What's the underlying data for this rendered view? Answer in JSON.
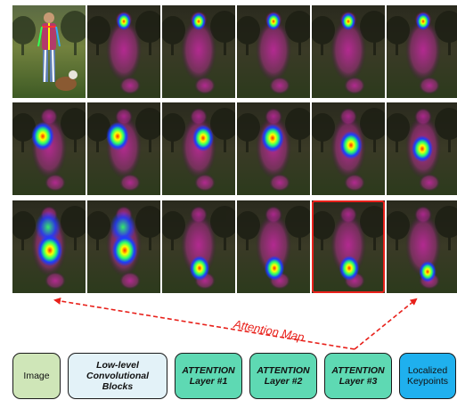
{
  "figure": {
    "arrow_label": "Attention Map",
    "rows": [
      {
        "tiles": [
          {
            "kind": "photo"
          },
          {
            "kind": "heat",
            "focus": "head"
          },
          {
            "kind": "heat",
            "focus": "head"
          },
          {
            "kind": "heat",
            "focus": "head"
          },
          {
            "kind": "heat",
            "focus": "head"
          },
          {
            "kind": "heat",
            "focus": "head"
          }
        ]
      },
      {
        "tiles": [
          {
            "kind": "heat",
            "focus": "left-shoulder"
          },
          {
            "kind": "heat",
            "focus": "left-shoulder"
          },
          {
            "kind": "heat",
            "focus": "right-torso"
          },
          {
            "kind": "heat",
            "focus": "center-torso"
          },
          {
            "kind": "heat",
            "focus": "right-hip"
          },
          {
            "kind": "heat",
            "focus": "center-hip"
          }
        ]
      },
      {
        "tiles": [
          {
            "kind": "heat",
            "focus": "full-torso"
          },
          {
            "kind": "heat",
            "focus": "full-torso"
          },
          {
            "kind": "heat",
            "focus": "legs"
          },
          {
            "kind": "heat",
            "focus": "legs"
          },
          {
            "kind": "heat",
            "focus": "legs",
            "highlighted": true
          },
          {
            "kind": "heat",
            "focus": "right-leg"
          }
        ]
      }
    ],
    "pipeline": [
      {
        "id": "image",
        "label": "Image",
        "color": "#cfe6b8",
        "style": "plain"
      },
      {
        "id": "low-level",
        "label": "Low-level\nConvolutional\nBlocks",
        "color": "#e3f2f8",
        "style": "bold-italic"
      },
      {
        "id": "attention-1",
        "label": "ATTENTION\nLayer #1",
        "color": "#5ed9b3",
        "style": "bold-italic"
      },
      {
        "id": "attention-2",
        "label": "ATTENTION\nLayer #2",
        "color": "#5ed9b3",
        "style": "bold-italic"
      },
      {
        "id": "attention-3",
        "label": "ATTENTION\nLayer #3",
        "color": "#5ed9b3",
        "style": "bold-italic"
      },
      {
        "id": "keypoints",
        "label": "Localized\nKeypoints",
        "color": "#1fb0ee",
        "style": "plain"
      }
    ],
    "colors": {
      "highlight_box": "#e8201a",
      "arrow": "#e8201a",
      "heat_low": "#3a0a48",
      "heat_mid": "#c0289c",
      "heat_high": "#ffff00"
    }
  }
}
